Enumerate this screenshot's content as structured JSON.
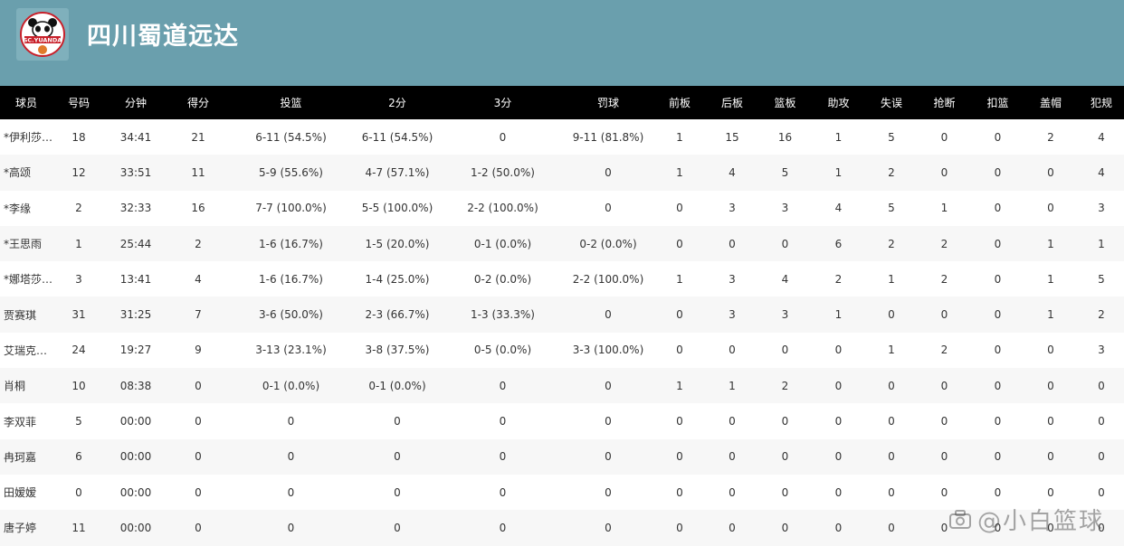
{
  "header": {
    "team_name": "四川蜀道远达",
    "logo_text": "SC.YUANDA"
  },
  "table": {
    "columns": [
      "球员",
      "号码",
      "分钟",
      "得分",
      "投篮",
      "2分",
      "3分",
      "罚球",
      "前板",
      "后板",
      "篮板",
      "助攻",
      "失误",
      "抢断",
      "扣篮",
      "盖帽",
      "犯规"
    ],
    "rows": [
      [
        "*伊利莎…",
        "18",
        "34:41",
        "21",
        "6-11 (54.5%)",
        "6-11 (54.5%)",
        "0",
        "9-11 (81.8%)",
        "1",
        "15",
        "16",
        "1",
        "5",
        "0",
        "0",
        "2",
        "4"
      ],
      [
        "*高颂",
        "12",
        "33:51",
        "11",
        "5-9 (55.6%)",
        "4-7 (57.1%)",
        "1-2 (50.0%)",
        "0",
        "1",
        "4",
        "5",
        "1",
        "2",
        "0",
        "0",
        "0",
        "4"
      ],
      [
        "*李缘",
        "2",
        "32:33",
        "16",
        "7-7 (100.0%)",
        "5-5 (100.0%)",
        "2-2 (100.0%)",
        "0",
        "0",
        "3",
        "3",
        "4",
        "5",
        "1",
        "0",
        "0",
        "3"
      ],
      [
        "*王思雨",
        "1",
        "25:44",
        "2",
        "1-6 (16.7%)",
        "1-5 (20.0%)",
        "0-1 (0.0%)",
        "0-2 (0.0%)",
        "0",
        "0",
        "0",
        "6",
        "2",
        "2",
        "0",
        "1",
        "1"
      ],
      [
        "*娜塔莎…",
        "3",
        "13:41",
        "4",
        "1-6 (16.7%)",
        "1-4 (25.0%)",
        "0-2 (0.0%)",
        "2-2 (100.0%)",
        "1",
        "3",
        "4",
        "2",
        "1",
        "2",
        "0",
        "1",
        "5"
      ],
      [
        "贾赛琪",
        "31",
        "31:25",
        "7",
        "3-6 (50.0%)",
        "2-3 (66.7%)",
        "1-3 (33.3%)",
        "0",
        "0",
        "3",
        "3",
        "1",
        "0",
        "0",
        "0",
        "1",
        "2"
      ],
      [
        "艾瑞克…",
        "24",
        "19:27",
        "9",
        "3-13 (23.1%)",
        "3-8 (37.5%)",
        "0-5 (0.0%)",
        "3-3 (100.0%)",
        "0",
        "0",
        "0",
        "0",
        "1",
        "2",
        "0",
        "0",
        "3"
      ],
      [
        "肖桐",
        "10",
        "08:38",
        "0",
        "0-1 (0.0%)",
        "0-1 (0.0%)",
        "0",
        "0",
        "1",
        "1",
        "2",
        "0",
        "0",
        "0",
        "0",
        "0",
        "0"
      ],
      [
        "李双菲",
        "5",
        "00:00",
        "0",
        "0",
        "0",
        "0",
        "0",
        "0",
        "0",
        "0",
        "0",
        "0",
        "0",
        "0",
        "0",
        "0"
      ],
      [
        "冉珂嘉",
        "6",
        "00:00",
        "0",
        "0",
        "0",
        "0",
        "0",
        "0",
        "0",
        "0",
        "0",
        "0",
        "0",
        "0",
        "0",
        "0"
      ],
      [
        "田嫒嫒",
        "0",
        "00:00",
        "0",
        "0",
        "0",
        "0",
        "0",
        "0",
        "0",
        "0",
        "0",
        "0",
        "0",
        "0",
        "0",
        "0"
      ],
      [
        "唐子婷",
        "11",
        "00:00",
        "0",
        "0",
        "0",
        "0",
        "0",
        "0",
        "0",
        "0",
        "0",
        "0",
        "0",
        "0",
        "0",
        "0"
      ]
    ]
  },
  "watermark": {
    "text": "@小白篮球"
  }
}
